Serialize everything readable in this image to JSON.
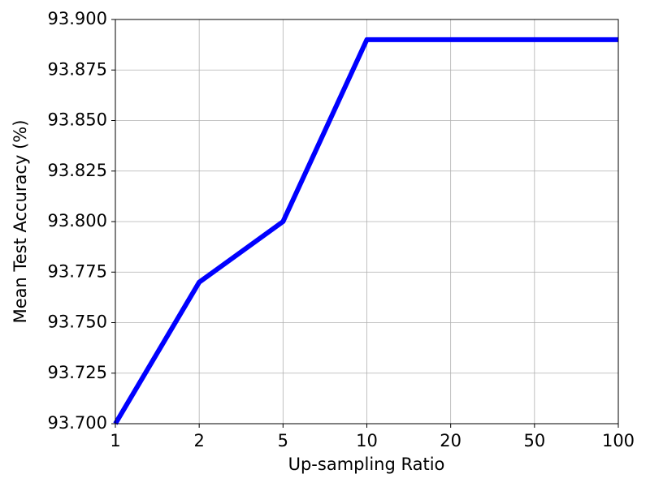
{
  "chart_data": {
    "type": "line",
    "x_label": "Up-sampling Ratio",
    "y_label": "Mean Test Accuracy (%)",
    "categories": [
      "1",
      "2",
      "5",
      "10",
      "20",
      "50",
      "100"
    ],
    "series": [
      {
        "color": "#0000ff",
        "values": [
          93.7,
          93.77,
          93.8,
          93.89,
          93.89,
          93.89,
          93.89
        ]
      }
    ],
    "ylim": [
      93.7,
      93.9
    ],
    "yticks": [
      {
        "value": 93.7,
        "label": "93.700"
      },
      {
        "value": 93.725,
        "label": "93.725"
      },
      {
        "value": 93.75,
        "label": "93.750"
      },
      {
        "value": 93.775,
        "label": "93.775"
      },
      {
        "value": 93.8,
        "label": "93.800"
      },
      {
        "value": 93.825,
        "label": "93.825"
      },
      {
        "value": 93.85,
        "label": "93.850"
      },
      {
        "value": 93.875,
        "label": "93.875"
      },
      {
        "value": 93.9,
        "label": "93.900"
      }
    ],
    "grid": true
  }
}
